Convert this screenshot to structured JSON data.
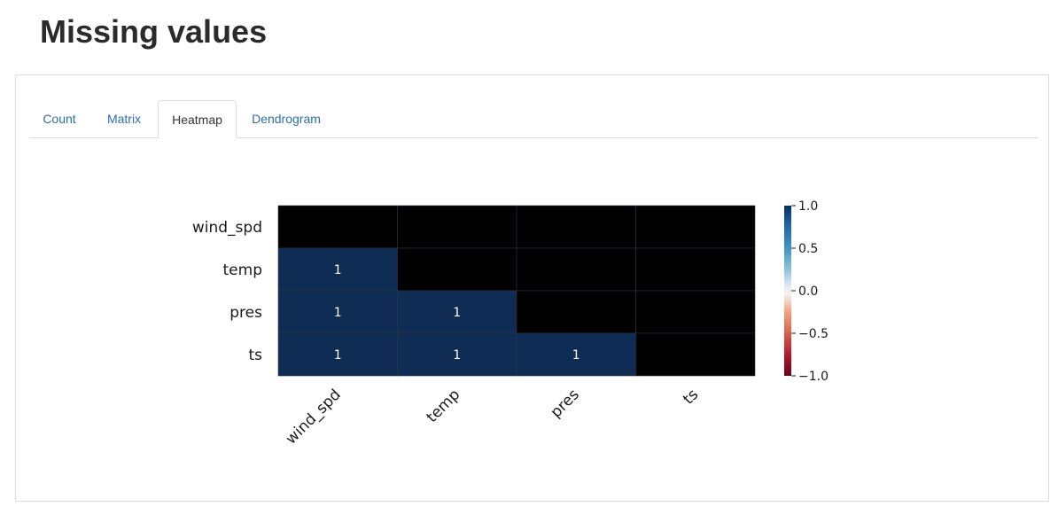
{
  "page": {
    "title": "Missing values"
  },
  "tabs": [
    {
      "label": "Count",
      "active": false
    },
    {
      "label": "Matrix",
      "active": false
    },
    {
      "label": "Heatmap",
      "active": true
    },
    {
      "label": "Dendrogram",
      "active": false
    }
  ],
  "colors": {
    "link": "#2a6eb0",
    "cell_positive": "#0f2c55",
    "cell_masked": "#000000"
  },
  "chart_data": {
    "type": "heatmap",
    "rows": [
      "wind_spd",
      "temp",
      "pres",
      "ts"
    ],
    "columns": [
      "wind_spd",
      "temp",
      "pres",
      "ts"
    ],
    "values": [
      [
        null,
        null,
        null,
        null
      ],
      [
        1,
        null,
        null,
        null
      ],
      [
        1,
        1,
        null,
        null
      ],
      [
        1,
        1,
        1,
        null
      ]
    ],
    "colorbar": {
      "ticks": [
        "1.0",
        "0.5",
        "0.0",
        "−0.5",
        "−1.0"
      ],
      "range": [
        -1,
        1
      ],
      "colormap": "RdBu"
    }
  }
}
